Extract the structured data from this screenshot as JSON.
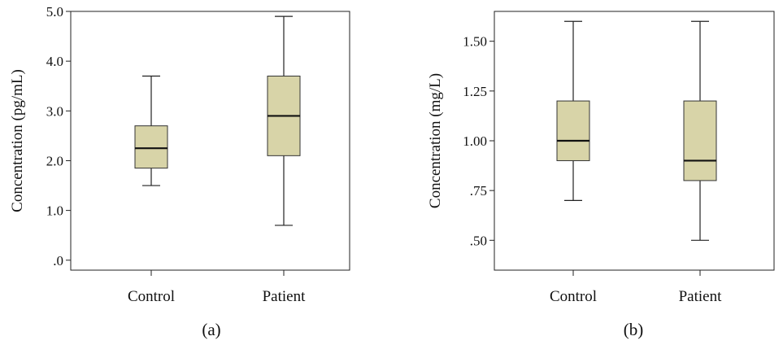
{
  "chart_data": [
    {
      "type": "boxplot",
      "panel_label": "(a)",
      "ylabel": "Concentration (pg/mL)",
      "categories": [
        "Control",
        "Patient"
      ],
      "ylim": [
        -0.2,
        5.0
      ],
      "yticks": [
        0.0,
        1.0,
        2.0,
        3.0,
        4.0,
        5.0
      ],
      "ytick_labels": [
        ".0",
        "1.0",
        "2.0",
        "3.0",
        "4.0",
        "5.0"
      ],
      "grid": false,
      "box_color": "#d8d4a8",
      "boxes": [
        {
          "category": "Control",
          "min": 1.5,
          "q1": 1.85,
          "median": 2.25,
          "q3": 2.7,
          "max": 3.7
        },
        {
          "category": "Patient",
          "min": 0.7,
          "q1": 2.1,
          "median": 2.9,
          "q3": 3.7,
          "max": 4.9
        }
      ]
    },
    {
      "type": "boxplot",
      "panel_label": "(b)",
      "ylabel": "Concentration (mg/L)",
      "categories": [
        "Control",
        "Patient"
      ],
      "ylim": [
        0.35,
        1.65
      ],
      "yticks": [
        0.5,
        0.75,
        1.0,
        1.25,
        1.5
      ],
      "ytick_labels": [
        ".50",
        ".75",
        "1.00",
        "1.25",
        "1.50"
      ],
      "grid": false,
      "box_color": "#d8d4a8",
      "boxes": [
        {
          "category": "Control",
          "min": 0.7,
          "q1": 0.9,
          "median": 1.0,
          "q3": 1.2,
          "max": 1.6
        },
        {
          "category": "Patient",
          "min": 0.5,
          "q1": 0.8,
          "median": 0.9,
          "q3": 1.2,
          "max": 1.6
        }
      ]
    }
  ]
}
